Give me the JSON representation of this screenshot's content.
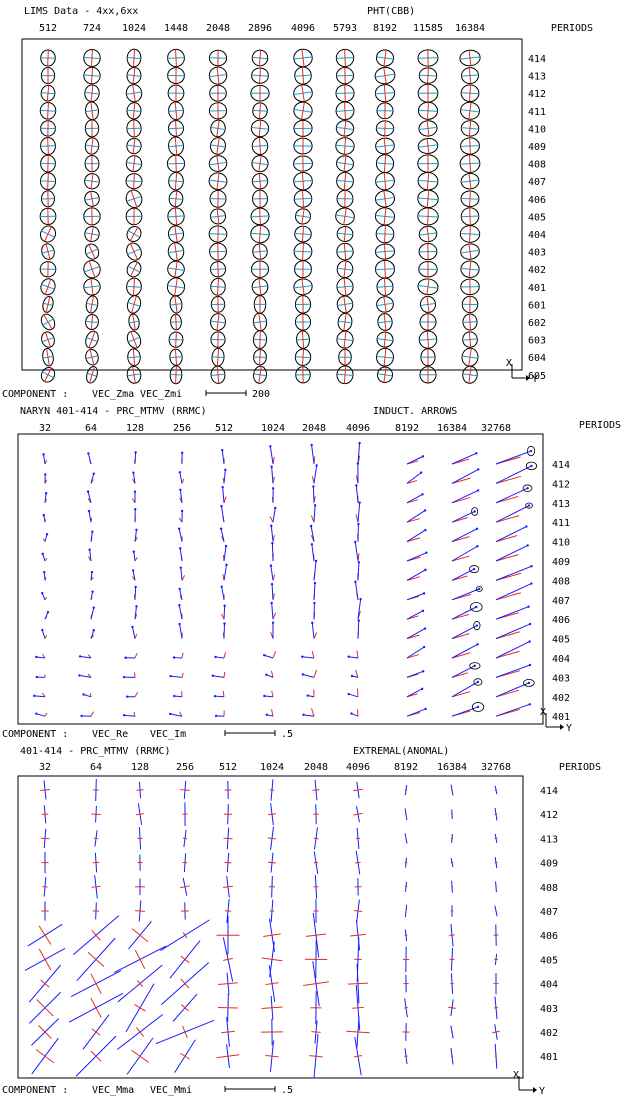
{
  "colors": {
    "blue": "#1a73e8",
    "red": "#e0301e",
    "navy": "#1a1aff",
    "frame": "#000000"
  },
  "panels": [
    {
      "kind": "ellipse",
      "title_left": "LIMS Data - 4xx,6xx",
      "title_right": "PHT(CBB)",
      "periods_label": "PERIODS",
      "x_ticks": [
        "512",
        "724",
        "1024",
        "1448",
        "2048",
        "2896",
        "4096",
        "5793",
        "8192",
        "11585",
        "16384"
      ],
      "sites": [
        "414",
        "413",
        "412",
        "411",
        "410",
        "409",
        "408",
        "407",
        "406",
        "405",
        "404",
        "403",
        "402",
        "401",
        "601",
        "602",
        "603",
        "604",
        "605"
      ],
      "component_label": "COMPONENT :",
      "legend": [
        {
          "name": "VEC_Zma",
          "color": "#1a9bd8"
        },
        {
          "name": "VEC_Zmi",
          "color": "#e0301e"
        }
      ],
      "scale_label": "200",
      "axis_x": "X",
      "axis_y": "Y"
    },
    {
      "kind": "arrow",
      "title_left": "NARYN 401-414 - PRC_MTMV (RRMC)",
      "title_right": "INDUCT. ARROWS",
      "periods_label": "PERIODS",
      "x_ticks": [
        "32",
        "64",
        "128",
        "256",
        "512",
        "1024",
        "2048",
        "4096",
        "8192",
        "16384",
        "32768"
      ],
      "sites": [
        "414",
        "412",
        "413",
        "411",
        "410",
        "409",
        "408",
        "407",
        "406",
        "405",
        "404",
        "403",
        "402",
        "401"
      ],
      "component_label": "COMPONENT :",
      "legend": [
        {
          "name": "VEC_Re",
          "color": "#1a1aff"
        },
        {
          "name": "VEC_Im",
          "color": "#e0301e"
        }
      ],
      "scale_label": ".5",
      "axis_x": "X",
      "axis_y": "Y"
    },
    {
      "kind": "cross",
      "title_left": "401-414 - PRC_MTMV (RRMC)",
      "title_right": "EXTREMAL(ANOMAL)",
      "periods_label": "PERIODS",
      "x_ticks": [
        "32",
        "64",
        "128",
        "256",
        "512",
        "1024",
        "2048",
        "4096",
        "8192",
        "16384",
        "32768"
      ],
      "sites": [
        "414",
        "412",
        "413",
        "409",
        "408",
        "407",
        "406",
        "405",
        "404",
        "403",
        "402",
        "401"
      ],
      "component_label": "COMPONENT :",
      "legend": [
        {
          "name": "VEC_Mma",
          "color": "#1a1aff"
        },
        {
          "name": "VEC_Mmi",
          "color": "#e0301e"
        }
      ],
      "scale_label": ".5",
      "axis_x": "X",
      "axis_y": "Y"
    }
  ],
  "chart_data": [
    {
      "type": "scatter",
      "title": "PHT(CBB)",
      "xlabel": "",
      "ylabel": "PERIODS",
      "categories": [
        "512",
        "724",
        "1024",
        "1448",
        "2048",
        "2896",
        "4096",
        "5793",
        "8192",
        "11585",
        "16384"
      ],
      "series": [
        {
          "name": "VEC_Zma"
        },
        {
          "name": "VEC_Zmi"
        }
      ]
    },
    {
      "type": "scatter",
      "title": "INDUCT. ARROWS",
      "xlabel": "",
      "ylabel": "PERIODS",
      "categories": [
        "32",
        "64",
        "128",
        "256",
        "512",
        "1024",
        "2048",
        "4096",
        "8192",
        "16384",
        "32768"
      ],
      "series": [
        {
          "name": "VEC_Re"
        },
        {
          "name": "VEC_Im"
        }
      ]
    },
    {
      "type": "scatter",
      "title": "EXTREMAL(ANOMAL)",
      "xlabel": "",
      "ylabel": "PERIODS",
      "categories": [
        "32",
        "64",
        "128",
        "256",
        "512",
        "1024",
        "2048",
        "4096",
        "8192",
        "16384",
        "32768"
      ],
      "series": [
        {
          "name": "VEC_Mma"
        },
        {
          "name": "VEC_Mmi"
        }
      ]
    }
  ]
}
